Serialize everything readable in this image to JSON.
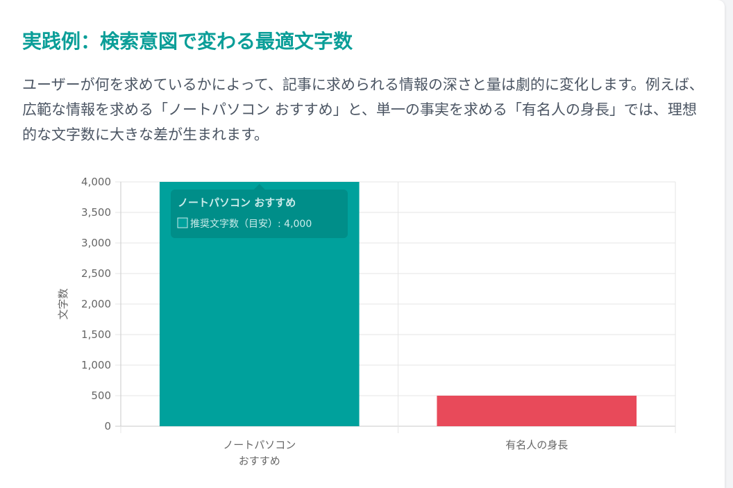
{
  "page": {
    "title": "実践例：検索意図で変わる最適文字数",
    "description": "ユーザーが何を求めているかによって、記事に求められる情報の深さと量は劇的に変化します。例えば、広範な情報を求める「ノートパソコン おすすめ」と、単一の事実を求める「有名人の身長」では、理想的な文字数に大きな差が生まれます。"
  },
  "chart_data": {
    "type": "bar",
    "categories": [
      [
        "ノートパソコン",
        "おすすめ"
      ],
      [
        "有名人の身長"
      ]
    ],
    "series": [
      {
        "name": "推奨文字数（目安）",
        "values": [
          4000,
          500
        ],
        "colors": [
          "#00a19c",
          "#e84a5a"
        ]
      }
    ],
    "ylabel": "文字数",
    "xlabel": "",
    "ylim": [
      0,
      4000
    ],
    "yticks": [
      0,
      500,
      1000,
      1500,
      2000,
      2500,
      3000,
      3500,
      4000
    ],
    "grid": true,
    "legend": "none",
    "tooltip": {
      "title": "ノートパソコン おすすめ",
      "label": "推奨文字数（目安）: 4,000"
    }
  }
}
